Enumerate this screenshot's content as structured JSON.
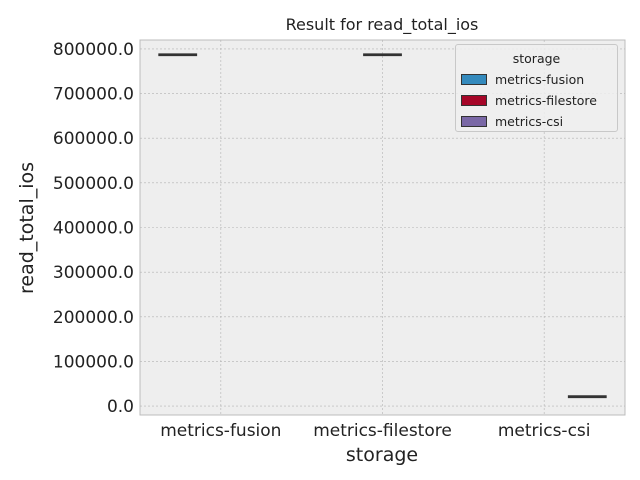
{
  "chart_data": {
    "type": "box",
    "title": "Result for read_total_ios",
    "xlabel": "storage",
    "ylabel": "read_total_ios",
    "categories": [
      "metrics-fusion",
      "metrics-filestore",
      "metrics-csi"
    ],
    "ylim": [
      -20000,
      820000
    ],
    "yticks": [
      0,
      100000,
      200000,
      300000,
      400000,
      500000,
      600000,
      700000,
      800000
    ],
    "ytick_labels": [
      "0.0",
      "100000.0",
      "200000.0",
      "300000.0",
      "400000.0",
      "500000.0",
      "600000.0",
      "700000.0",
      "800000.0"
    ],
    "grid": true,
    "series": [
      {
        "name": "metrics-fusion",
        "color": "#348ABD",
        "category": "metrics-fusion",
        "median": 787000
      },
      {
        "name": "metrics-filestore",
        "color": "#A60628",
        "category": "metrics-filestore",
        "median": 787000
      },
      {
        "name": "metrics-csi",
        "color": "#7A68A6",
        "category": "metrics-csi",
        "median": 21000
      }
    ],
    "legend": {
      "title": "storage",
      "position": "top-right"
    }
  }
}
